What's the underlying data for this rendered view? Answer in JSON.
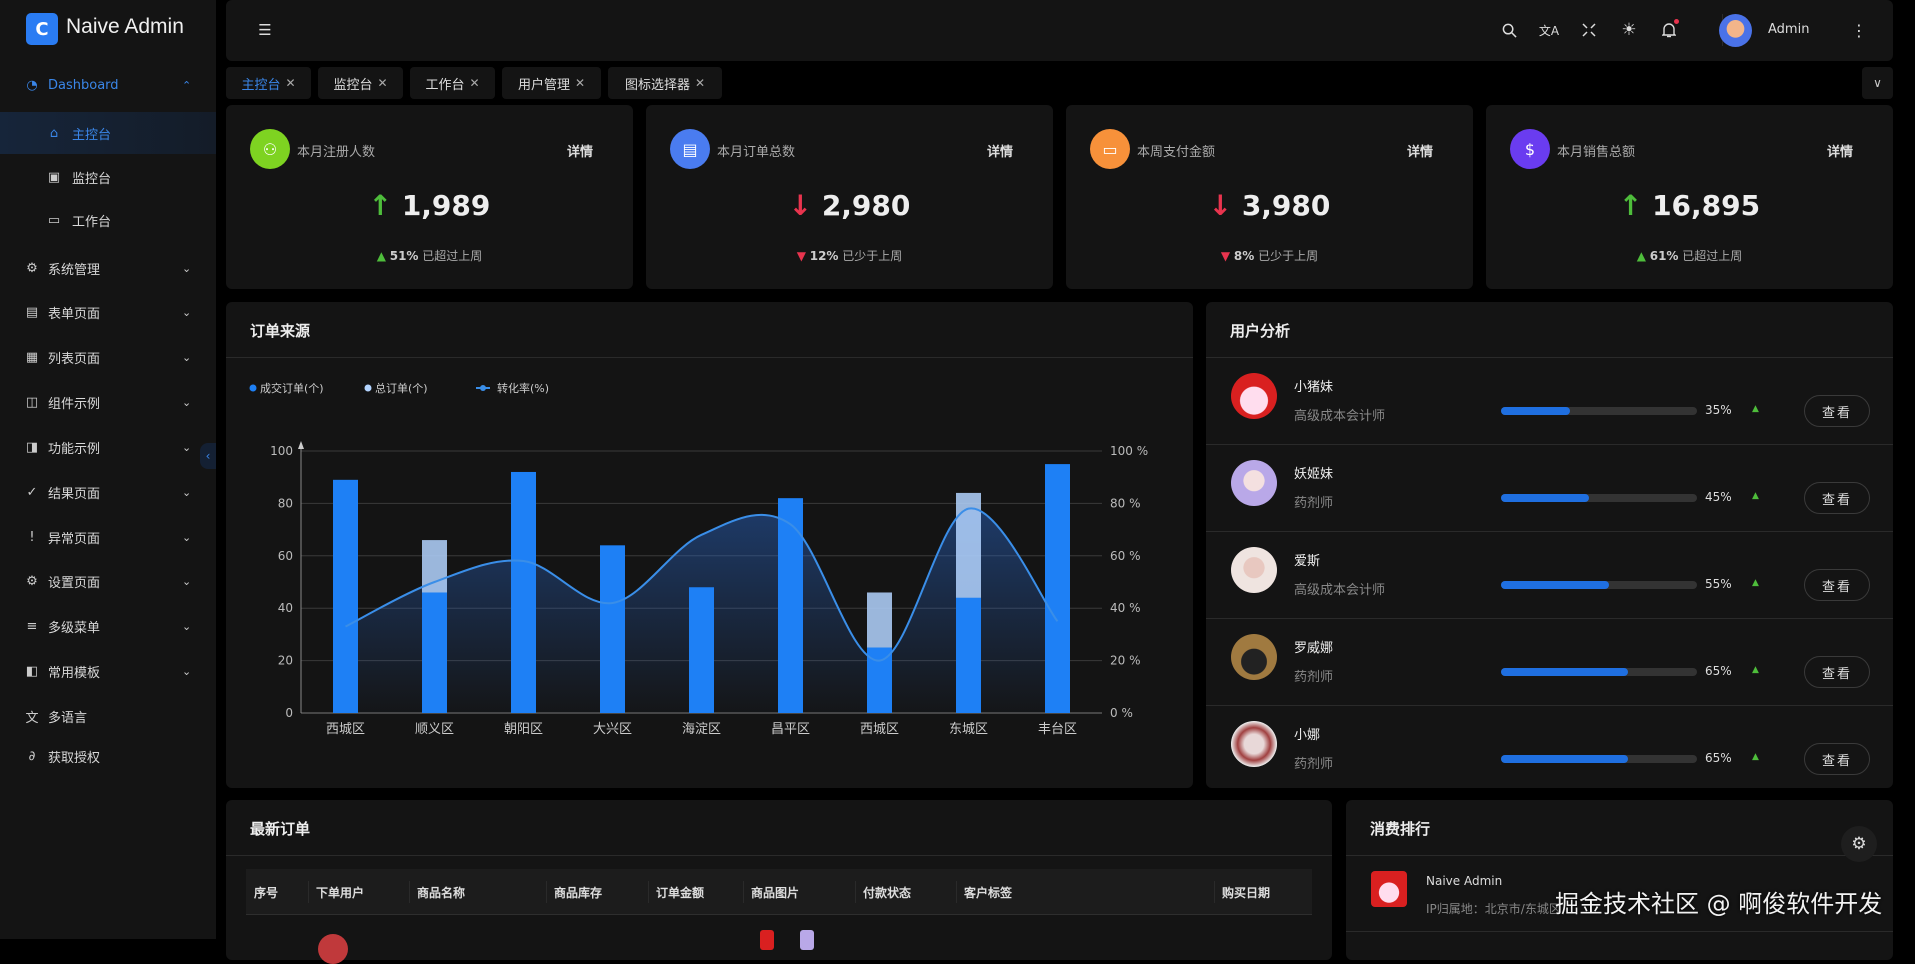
{
  "app": {
    "title": "Naive Admin",
    "logo_letter": "C"
  },
  "sidebar": {
    "items": [
      {
        "label": "Dashboard",
        "icon": "dashboard-icon",
        "expanded": true,
        "children": [
          {
            "label": "主控台",
            "icon": "home-icon",
            "active": true
          },
          {
            "label": "监控台",
            "icon": "monitor-chart-icon"
          },
          {
            "label": "工作台",
            "icon": "desktop-icon"
          }
        ]
      },
      {
        "label": "系统管理",
        "icon": "gear-icon"
      },
      {
        "label": "表单页面",
        "icon": "form-icon"
      },
      {
        "label": "列表页面",
        "icon": "table-icon"
      },
      {
        "label": "组件示例",
        "icon": "component-icon"
      },
      {
        "label": "功能示例",
        "icon": "function-icon"
      },
      {
        "label": "结果页面",
        "icon": "check-circle-icon"
      },
      {
        "label": "异常页面",
        "icon": "exclamation-circle-icon"
      },
      {
        "label": "设置页面",
        "icon": "gear-icon"
      },
      {
        "label": "多级菜单",
        "icon": "menu-icon"
      },
      {
        "label": "常用模板",
        "icon": "layout-icon"
      },
      {
        "label": "多语言",
        "icon": "translate-icon"
      },
      {
        "label": "获取授权",
        "icon": "link-icon"
      }
    ]
  },
  "header": {
    "user_name": "Admin",
    "icons": [
      "menu-fold-icon",
      "search-icon",
      "translate-icon",
      "fullscreen-icon",
      "sun-icon",
      "bell-icon",
      "more-vertical-icon"
    ],
    "notification_dot": true
  },
  "tabs": [
    {
      "label": "主控台",
      "active": true
    },
    {
      "label": "监控台"
    },
    {
      "label": "工作台"
    },
    {
      "label": "用户管理"
    },
    {
      "label": "图标选择器"
    }
  ],
  "stats": [
    {
      "label": "本月注册人数",
      "detail": "详情",
      "value": "1,989",
      "trend": "up",
      "pct": "51%",
      "compare": "已超过上周",
      "color": "#7ed321"
    },
    {
      "label": "本月订单总数",
      "detail": "详情",
      "value": "2,980",
      "trend": "down",
      "pct": "12%",
      "compare": "已少于上周",
      "color": "#4a7cf0"
    },
    {
      "label": "本周支付金额",
      "detail": "详情",
      "value": "3,980",
      "trend": "down",
      "pct": "8%",
      "compare": "已少于上周",
      "color": "#f7913a"
    },
    {
      "label": "本月销售总额",
      "detail": "详情",
      "value": "16,895",
      "trend": "up",
      "pct": "61%",
      "compare": "已超过上周",
      "color": "#6a3cf0"
    }
  ],
  "order_source": {
    "title": "订单来源"
  },
  "chart_data": {
    "type": "bar",
    "categories": [
      "西城区",
      "顺义区",
      "朝阳区",
      "大兴区",
      "海淀区",
      "昌平区",
      "西城区",
      "东城区",
      "丰台区"
    ],
    "series": [
      {
        "name": "成交订单(个)",
        "type": "bar",
        "axis": "left",
        "values": [
          89,
          46,
          92,
          64,
          48,
          82,
          25,
          44,
          95
        ],
        "color": "#1e80f5"
      },
      {
        "name": "总订单(个)",
        "type": "bar",
        "axis": "left",
        "values": [
          null,
          66,
          null,
          null,
          null,
          null,
          46,
          84,
          null
        ],
        "color": "#b3d4ff"
      },
      {
        "name": "转化率(%)",
        "type": "line",
        "smooth": true,
        "area": true,
        "axis": "right",
        "values": [
          33,
          50,
          58,
          42,
          68,
          72,
          20,
          78,
          35
        ],
        "color": "#3a8ee8"
      }
    ],
    "y_left": {
      "ticks": [
        "0",
        "20",
        "40",
        "60",
        "80",
        "100"
      ],
      "range": [
        0,
        100
      ]
    },
    "y_right": {
      "ticks": [
        "0 %",
        "20 %",
        "40 %",
        "60 %",
        "80 %",
        "100 %"
      ],
      "range": [
        0,
        100
      ]
    },
    "grid": true,
    "legend": "top-left"
  },
  "user_analysis": {
    "title": "用户分析",
    "button": "查看",
    "users": [
      {
        "name": "小猪妹",
        "role": "高级成本会计师",
        "pct": 35,
        "pct_label": "35%"
      },
      {
        "name": "妖姬妹",
        "role": "药剂师",
        "pct": 45,
        "pct_label": "45%"
      },
      {
        "name": "爱斯",
        "role": "高级成本会计师",
        "pct": 55,
        "pct_label": "55%"
      },
      {
        "name": "罗威娜",
        "role": "药剂师",
        "pct": 65,
        "pct_label": "65%"
      },
      {
        "name": "小娜",
        "role": "药剂师",
        "pct": 65,
        "pct_label": "65%"
      }
    ]
  },
  "orders": {
    "title": "最新订单",
    "columns": [
      "序号",
      "下单用户",
      "商品名称",
      "商品库存",
      "订单金额",
      "商品图片",
      "付款状态",
      "客户标签",
      "购买日期"
    ]
  },
  "ranking": {
    "title": "消费排行",
    "items": [
      {
        "name": "Naive Admin",
        "location": "IP归属地：北京市/东城区"
      }
    ]
  },
  "watermark": "掘金技术社区 @ 啊俊软件开发"
}
